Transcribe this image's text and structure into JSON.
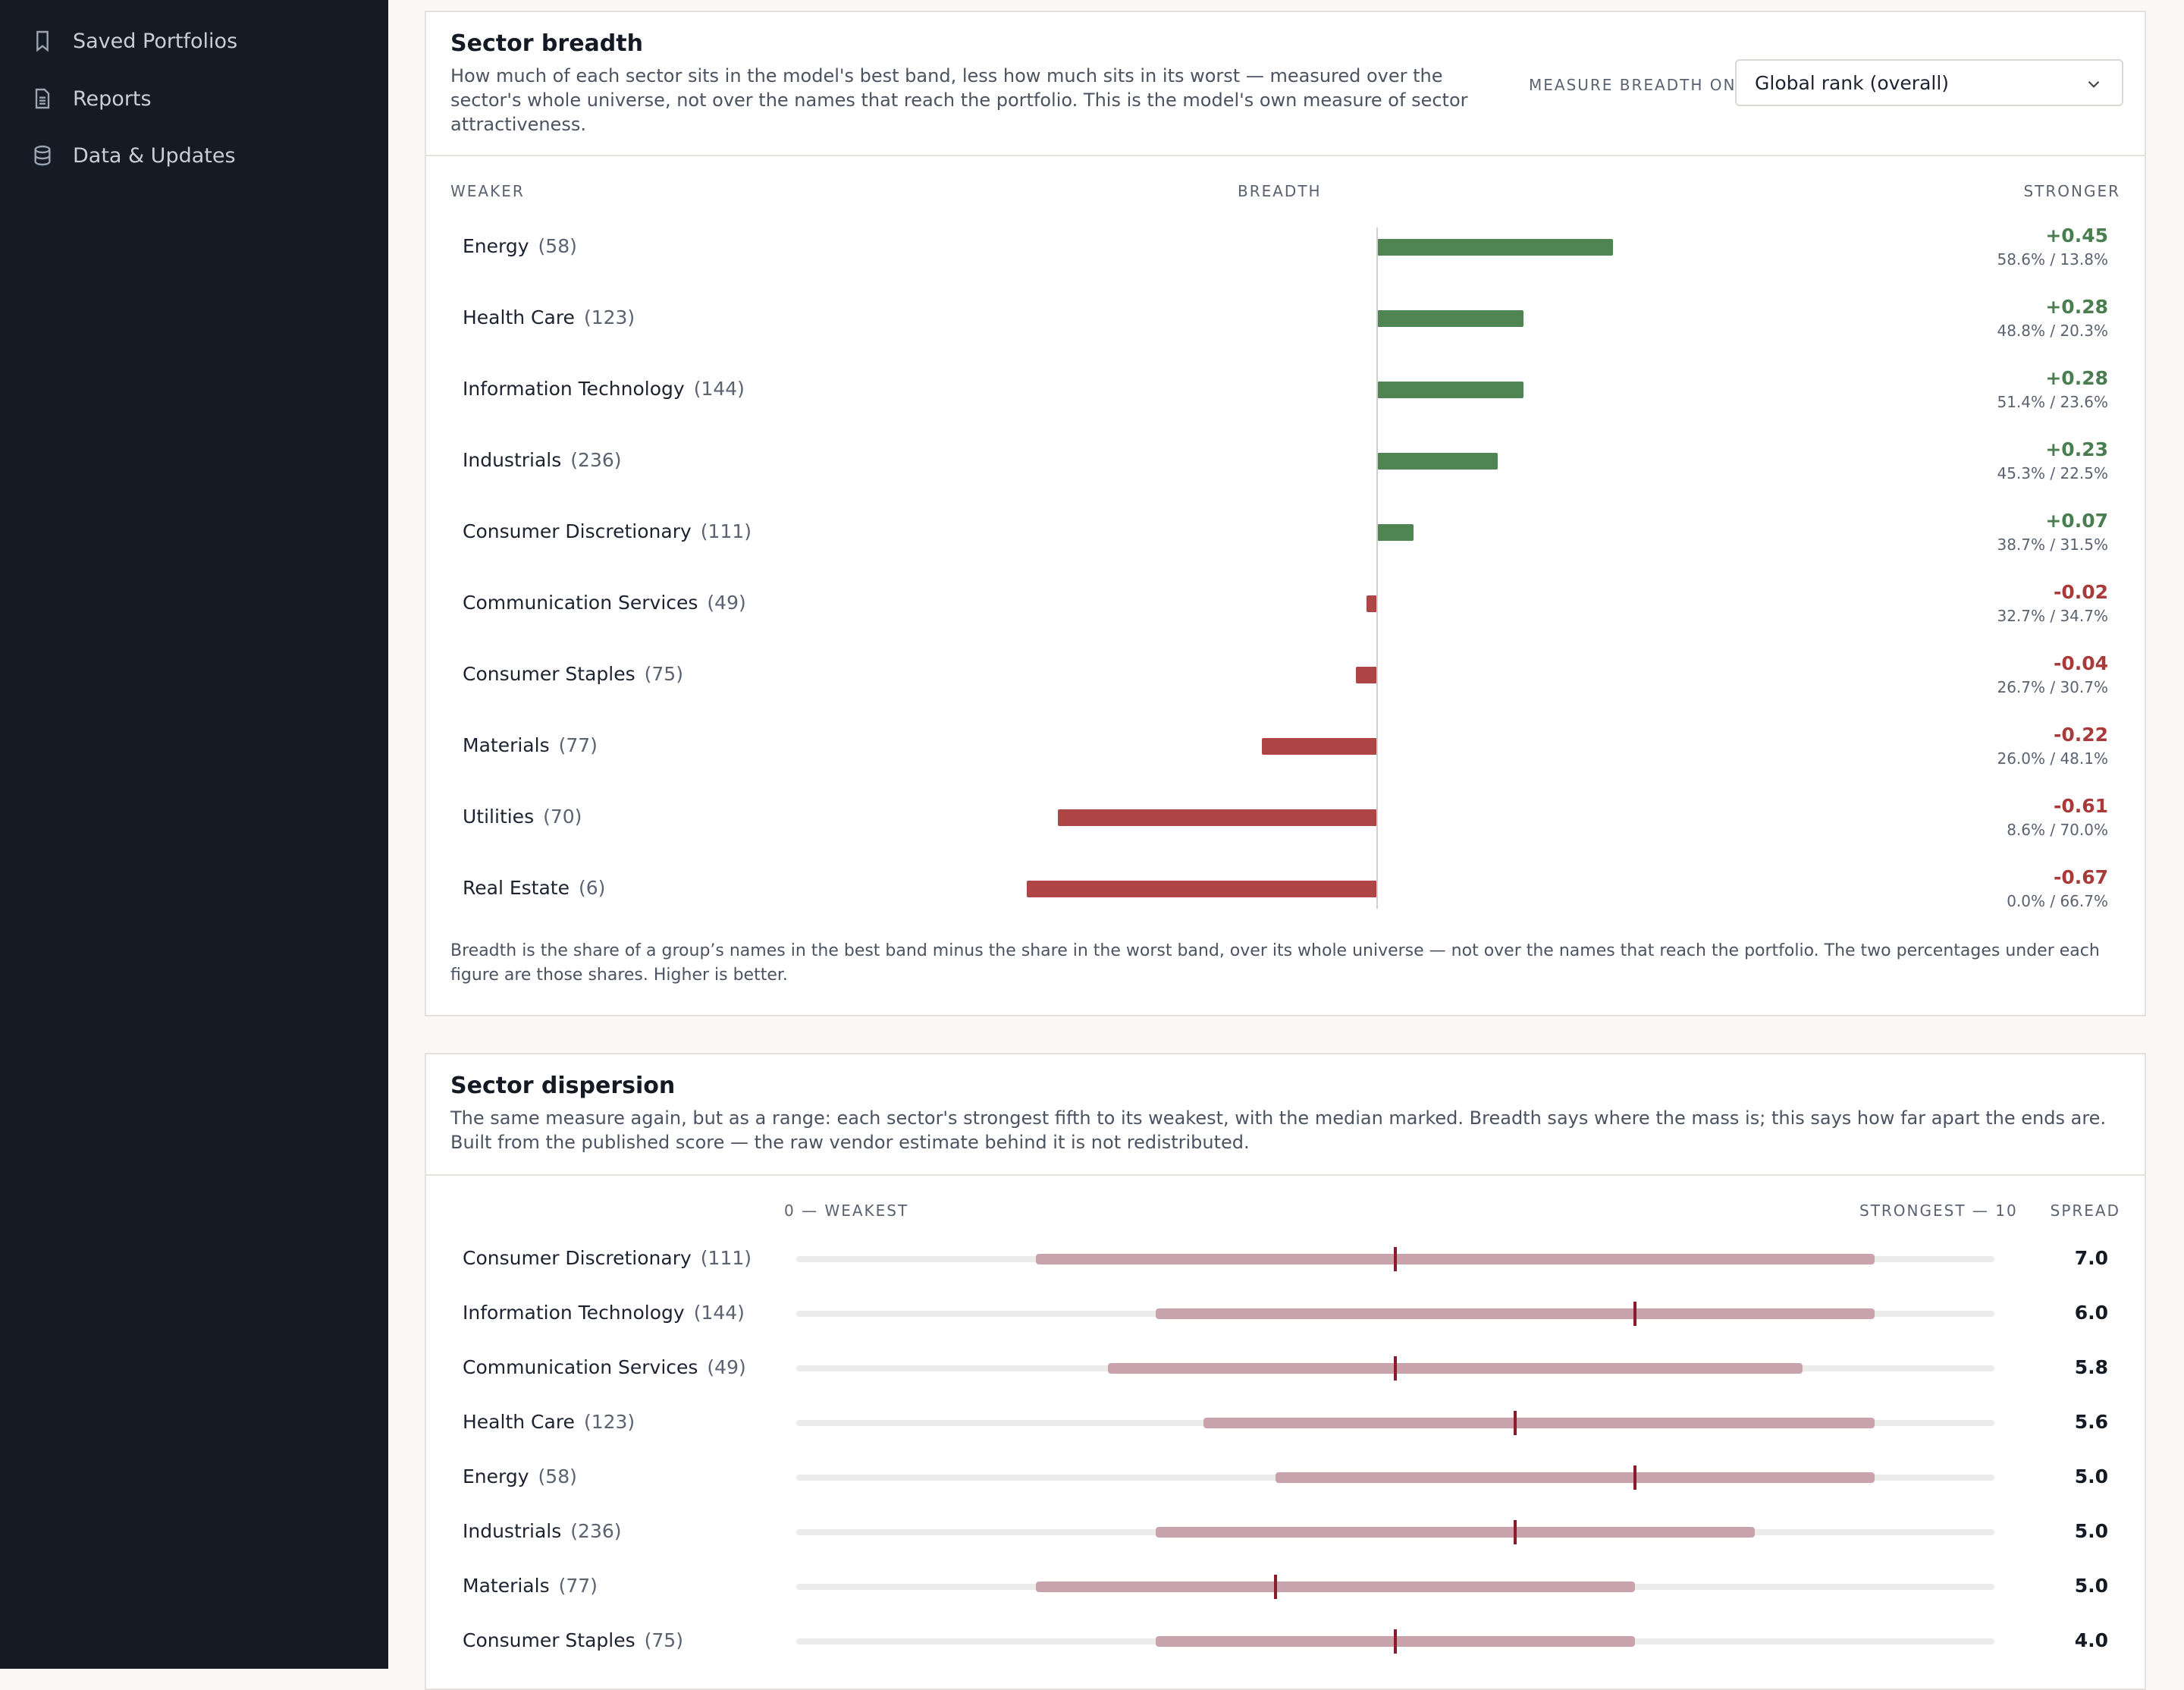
{
  "sidebar": {
    "items": [
      {
        "label": "Saved Portfolios",
        "icon": "bookmark-icon"
      },
      {
        "label": "Reports",
        "icon": "document-icon"
      },
      {
        "label": "Data & Updates",
        "icon": "database-icon"
      }
    ]
  },
  "breadth": {
    "title": "Sector breadth",
    "description": "How much of each sector sits in the model's best band, less how much sits in its worst — measured over the sector's whole universe, not over the names that reach the portfolio. This is the model's own measure of sector attractiveness.",
    "measure_label": "MEASURE BREADTH ON",
    "measure_value": "Global rank (overall)",
    "col_weaker": "WEAKER",
    "col_breadth": "BREADTH",
    "col_stronger": "STRONGER",
    "footnote": "Breadth is the share of a group’s names in the best band minus the share in the worst band, over its whole universe — not over the names that reach the portfolio. The two percentages under each figure are those shares. Higher is better.",
    "rows": [
      {
        "sector": "Energy",
        "count": "(58)",
        "value": 0.45,
        "display": "+0.45",
        "shares": "58.6% / 13.8%"
      },
      {
        "sector": "Health Care",
        "count": "(123)",
        "value": 0.28,
        "display": "+0.28",
        "shares": "48.8% / 20.3%"
      },
      {
        "sector": "Information Technology",
        "count": "(144)",
        "value": 0.28,
        "display": "+0.28",
        "shares": "51.4% / 23.6%"
      },
      {
        "sector": "Industrials",
        "count": "(236)",
        "value": 0.23,
        "display": "+0.23",
        "shares": "45.3% / 22.5%"
      },
      {
        "sector": "Consumer Discretionary",
        "count": "(111)",
        "value": 0.07,
        "display": "+0.07",
        "shares": "38.7% / 31.5%"
      },
      {
        "sector": "Communication Services",
        "count": "(49)",
        "value": -0.02,
        "display": "-0.02",
        "shares": "32.7% / 34.7%"
      },
      {
        "sector": "Consumer Staples",
        "count": "(75)",
        "value": -0.04,
        "display": "-0.04",
        "shares": "26.7% / 30.7%"
      },
      {
        "sector": "Materials",
        "count": "(77)",
        "value": -0.22,
        "display": "-0.22",
        "shares": "26.0% / 48.1%"
      },
      {
        "sector": "Utilities",
        "count": "(70)",
        "value": -0.61,
        "display": "-0.61",
        "shares": "8.6% / 70.0%"
      },
      {
        "sector": "Real Estate",
        "count": "(6)",
        "value": -0.67,
        "display": "-0.67",
        "shares": "0.0% / 66.7%"
      }
    ]
  },
  "dispersion": {
    "title": "Sector dispersion",
    "description": "The same measure again, but as a range: each sector's strongest fifth to its weakest, with the median marked. Breadth says where the mass is; this says how far apart the ends are. Built from the published score — the raw vendor estimate behind it is not redistributed.",
    "col_weakest": "0 — WEAKEST",
    "col_strongest": "STRONGEST — 10",
    "col_spread": "SPREAD",
    "scale": [
      0,
      10
    ],
    "rows": [
      {
        "sector": "Consumer Discretionary",
        "count": "(111)",
        "low": 2.0,
        "high": 9.0,
        "median": 5.0,
        "spread": "7.0"
      },
      {
        "sector": "Information Technology",
        "count": "(144)",
        "low": 3.0,
        "high": 9.0,
        "median": 7.0,
        "spread": "6.0"
      },
      {
        "sector": "Communication Services",
        "count": "(49)",
        "low": 2.6,
        "high": 8.4,
        "median": 5.0,
        "spread": "5.8"
      },
      {
        "sector": "Health Care",
        "count": "(123)",
        "low": 3.4,
        "high": 9.0,
        "median": 6.0,
        "spread": "5.6"
      },
      {
        "sector": "Energy",
        "count": "(58)",
        "low": 4.0,
        "high": 9.0,
        "median": 7.0,
        "spread": "5.0"
      },
      {
        "sector": "Industrials",
        "count": "(236)",
        "low": 3.0,
        "high": 8.0,
        "median": 6.0,
        "spread": "5.0"
      },
      {
        "sector": "Materials",
        "count": "(77)",
        "low": 2.0,
        "high": 7.0,
        "median": 4.0,
        "spread": "5.0"
      },
      {
        "sector": "Consumer Staples",
        "count": "(75)",
        "low": 3.0,
        "high": 7.0,
        "median": 5.0,
        "spread": "4.0"
      }
    ]
  },
  "chart_data": [
    {
      "type": "bar",
      "title": "Sector breadth",
      "categories": [
        "Energy",
        "Health Care",
        "Information Technology",
        "Industrials",
        "Consumer Discretionary",
        "Communication Services",
        "Consumer Staples",
        "Materials",
        "Utilities",
        "Real Estate"
      ],
      "values": [
        0.45,
        0.28,
        0.28,
        0.23,
        0.07,
        -0.02,
        -0.04,
        -0.22,
        -0.61,
        -0.67
      ],
      "xlabel": "BREADTH",
      "xlim": [
        -1,
        1
      ]
    },
    {
      "type": "range",
      "title": "Sector dispersion",
      "categories": [
        "Consumer Discretionary",
        "Information Technology",
        "Communication Services",
        "Health Care",
        "Energy",
        "Industrials",
        "Materials",
        "Consumer Staples"
      ],
      "low": [
        2.0,
        3.0,
        2.6,
        3.4,
        4.0,
        3.0,
        2.0,
        3.0
      ],
      "high": [
        9.0,
        9.0,
        8.4,
        9.0,
        9.0,
        8.0,
        7.0,
        7.0
      ],
      "median": [
        5.0,
        7.0,
        5.0,
        6.0,
        7.0,
        6.0,
        4.0,
        5.0
      ],
      "xlim": [
        0,
        10
      ]
    }
  ]
}
